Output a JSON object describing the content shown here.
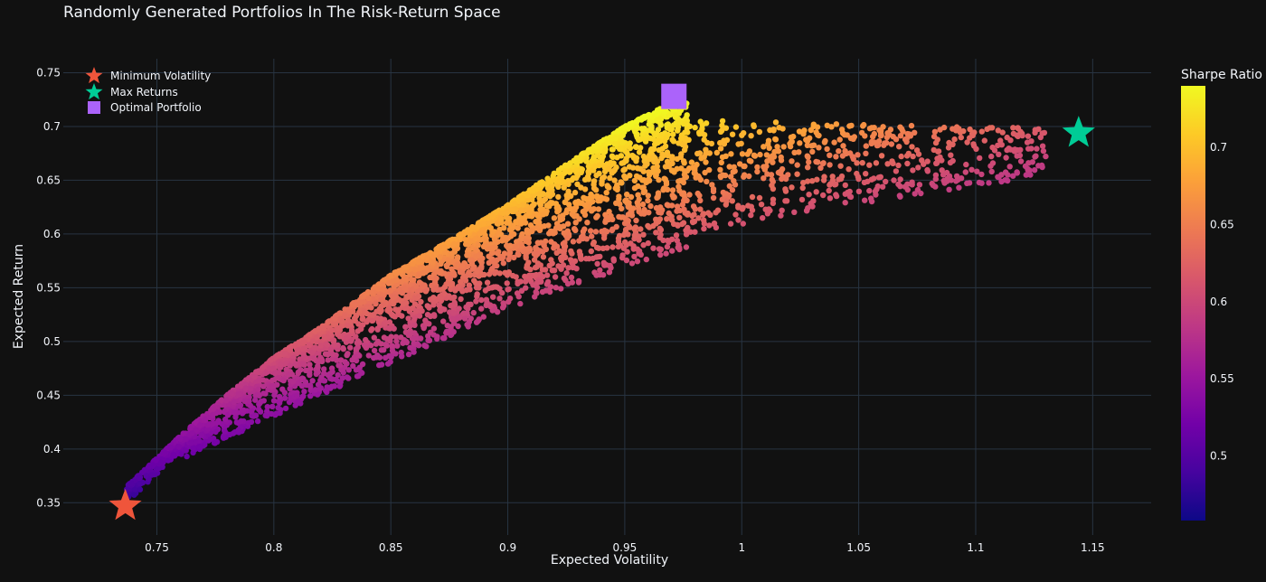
{
  "chart_data": {
    "type": "scatter",
    "title": "Randomly Generated Portfolios In The Risk-Return Space",
    "xlabel": "Expected Volatility",
    "ylabel": "Expected Return",
    "xlim": [
      0.71,
      1.175
    ],
    "ylim": [
      0.32,
      0.763
    ],
    "x_ticks": [
      {
        "value": 0.75,
        "label": "0.75"
      },
      {
        "value": 0.8,
        "label": "0.8"
      },
      {
        "value": 0.85,
        "label": "0.85"
      },
      {
        "value": 0.9,
        "label": "0.9"
      },
      {
        "value": 0.95,
        "label": "0.95"
      },
      {
        "value": 1.0,
        "label": "1"
      },
      {
        "value": 1.05,
        "label": "1.05"
      },
      {
        "value": 1.1,
        "label": "1.1"
      },
      {
        "value": 1.15,
        "label": "1.15"
      }
    ],
    "y_ticks": [
      {
        "value": 0.35,
        "label": "0.35"
      },
      {
        "value": 0.4,
        "label": "0.4"
      },
      {
        "value": 0.45,
        "label": "0.45"
      },
      {
        "value": 0.5,
        "label": "0.5"
      },
      {
        "value": 0.55,
        "label": "0.55"
      },
      {
        "value": 0.6,
        "label": "0.6"
      },
      {
        "value": 0.65,
        "label": "0.65"
      },
      {
        "value": 0.7,
        "label": "0.7"
      },
      {
        "value": 0.75,
        "label": "0.75"
      }
    ],
    "grid": true,
    "legend_position": "top-left",
    "colorscale": "plasma",
    "colorbar": {
      "title": "Sharpe Ratio",
      "range": [
        0.458,
        0.74
      ],
      "ticks": [
        {
          "value": 0.5,
          "label": "0.5"
        },
        {
          "value": 0.55,
          "label": "0.55"
        },
        {
          "value": 0.6,
          "label": "0.6"
        },
        {
          "value": 0.65,
          "label": "0.65"
        },
        {
          "value": 0.7,
          "label": "0.7"
        }
      ]
    },
    "frontier": [
      {
        "vol": 0.737,
        "ret": 0.365
      },
      {
        "vol": 0.745,
        "ret": 0.381
      },
      {
        "vol": 0.76,
        "ret": 0.412
      },
      {
        "vol": 0.78,
        "ret": 0.45
      },
      {
        "vol": 0.8,
        "ret": 0.485
      },
      {
        "vol": 0.82,
        "ret": 0.513
      },
      {
        "vol": 0.85,
        "ret": 0.562
      },
      {
        "vol": 0.88,
        "ret": 0.6
      },
      {
        "vol": 0.9,
        "ret": 0.627
      },
      {
        "vol": 0.93,
        "ret": 0.672
      },
      {
        "vol": 0.95,
        "ret": 0.7
      },
      {
        "vol": 0.97,
        "ret": 0.722
      }
    ],
    "series": [
      {
        "name": "Minimum Volatility",
        "marker": "star",
        "color": "#ef553b",
        "points": [
          {
            "x": 0.7365,
            "y": 0.347
          }
        ]
      },
      {
        "name": "Max Returns",
        "marker": "star",
        "color": "#00cc96",
        "points": [
          {
            "x": 1.144,
            "y": 0.694
          }
        ]
      },
      {
        "name": "Optimal Portfolio",
        "marker": "square",
        "color": "#ab63fa",
        "points": [
          {
            "x": 0.971,
            "y": 0.728
          }
        ]
      }
    ]
  }
}
